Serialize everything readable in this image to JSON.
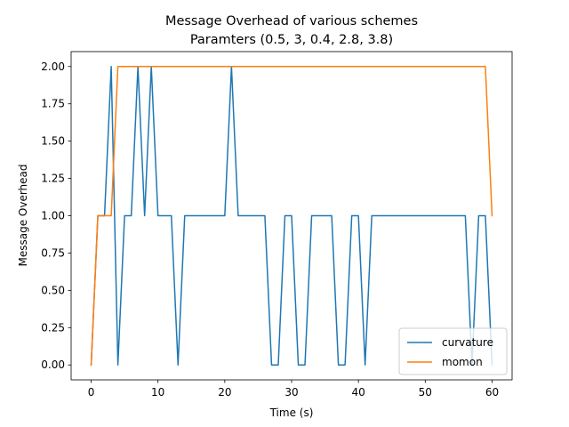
{
  "chart_data": {
    "type": "line",
    "title": "Message Overhead of various schemes",
    "subtitle": "Paramters (0.5, 3, 0.4, 2.8, 3.8)",
    "xlabel": "Time (s)",
    "ylabel": "Message Overhead",
    "xlim": [
      -3,
      63
    ],
    "ylim": [
      -0.1,
      2.1
    ],
    "xticks": [
      0,
      10,
      20,
      30,
      40,
      50,
      60
    ],
    "xtick_labels": [
      "0",
      "10",
      "20",
      "30",
      "40",
      "50",
      "60"
    ],
    "yticks": [
      0,
      0.25,
      0.5,
      0.75,
      1.0,
      1.25,
      1.5,
      1.75,
      2.0
    ],
    "ytick_labels": [
      "0.00",
      "0.25",
      "0.50",
      "0.75",
      "1.00",
      "1.25",
      "1.50",
      "1.75",
      "2.00"
    ],
    "grid": false,
    "legend_position": "lower-right",
    "series": [
      {
        "name": "curvature",
        "color": "#1f77b4",
        "x": [
          0,
          1,
          2,
          3,
          4,
          5,
          6,
          7,
          8,
          9,
          10,
          11,
          12,
          13,
          14,
          15,
          16,
          17,
          18,
          19,
          20,
          21,
          22,
          23,
          24,
          25,
          26,
          27,
          28,
          29,
          30,
          31,
          32,
          33,
          34,
          35,
          36,
          37,
          38,
          39,
          40,
          41,
          42,
          43,
          44,
          45,
          46,
          47,
          48,
          49,
          50,
          51,
          52,
          53,
          54,
          55,
          56,
          57,
          58,
          59,
          60
        ],
        "y": [
          0,
          1,
          1,
          2,
          0,
          1,
          1,
          2,
          1,
          2,
          1,
          1,
          1,
          0,
          1,
          1,
          1,
          1,
          1,
          1,
          1,
          2,
          1,
          1,
          1,
          1,
          1,
          0,
          0,
          1,
          1,
          0,
          0,
          1,
          1,
          1,
          1,
          0,
          0,
          1,
          1,
          0,
          1,
          1,
          1,
          1,
          1,
          1,
          1,
          1,
          1,
          1,
          1,
          1,
          1,
          1,
          1,
          0,
          1,
          1,
          0
        ]
      },
      {
        "name": "momon",
        "color": "#ff7f0e",
        "x": [
          0,
          1,
          2,
          3,
          4,
          5,
          10,
          20,
          30,
          40,
          50,
          55,
          58,
          59,
          60
        ],
        "y": [
          0,
          1,
          1,
          1,
          2,
          2,
          2,
          2,
          2,
          2,
          2,
          2,
          2,
          2,
          1
        ]
      }
    ]
  }
}
